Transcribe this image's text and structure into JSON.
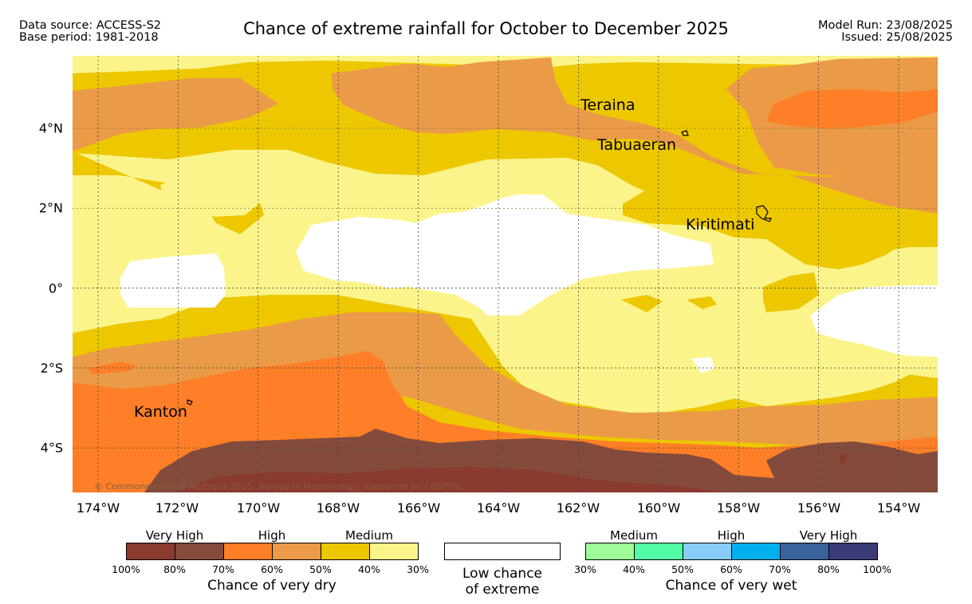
{
  "header": {
    "data_source": "Data source: ACCESS-S2",
    "base_period": "Base period: 1981-2018",
    "title": "Chance of extreme rainfall for October to December 2025",
    "model_run": "Model Run: 23/08/2025",
    "issued": "Issued: 25/08/2025"
  },
  "map": {
    "longitude_labels": [
      "174°W",
      "172°W",
      "170°W",
      "168°W",
      "166°W",
      "164°W",
      "162°W",
      "160°W",
      "158°W",
      "156°W",
      "154°W"
    ],
    "latitude_labels": [
      "4°N",
      "2°N",
      "0°",
      "2°S",
      "4°S"
    ],
    "places": [
      "Teraina",
      "Tabuaeran",
      "Kiritimati",
      "Kanton"
    ],
    "copyright": "© Commonwealth of Australia 2025, Bureau of Meteorology, supported by COSPPac"
  },
  "legend": {
    "dry": {
      "levels": [
        "Very High",
        "High",
        "Medium"
      ],
      "ticks": [
        "100%",
        "80%",
        "70%",
        "60%",
        "50%",
        "40%",
        "30%"
      ],
      "colors": [
        "#8b3a30",
        "#844b3c",
        "#fe7f27",
        "#eb9a48",
        "#edc700",
        "#fbf48a"
      ],
      "caption": "Chance of very dry"
    },
    "low": {
      "caption_line1": "Low chance",
      "caption_line2": "of extreme",
      "color": "#ffffff"
    },
    "wet": {
      "levels": [
        "Medium",
        "High",
        "Very High"
      ],
      "ticks": [
        "30%",
        "40%",
        "50%",
        "60%",
        "70%",
        "80%",
        "100%"
      ],
      "colors": [
        "#9ffb98",
        "#52fba6",
        "#88cdf7",
        "#00b0ee",
        "#3a629d",
        "#3d3a7a"
      ],
      "caption": "Chance of very wet"
    }
  }
}
